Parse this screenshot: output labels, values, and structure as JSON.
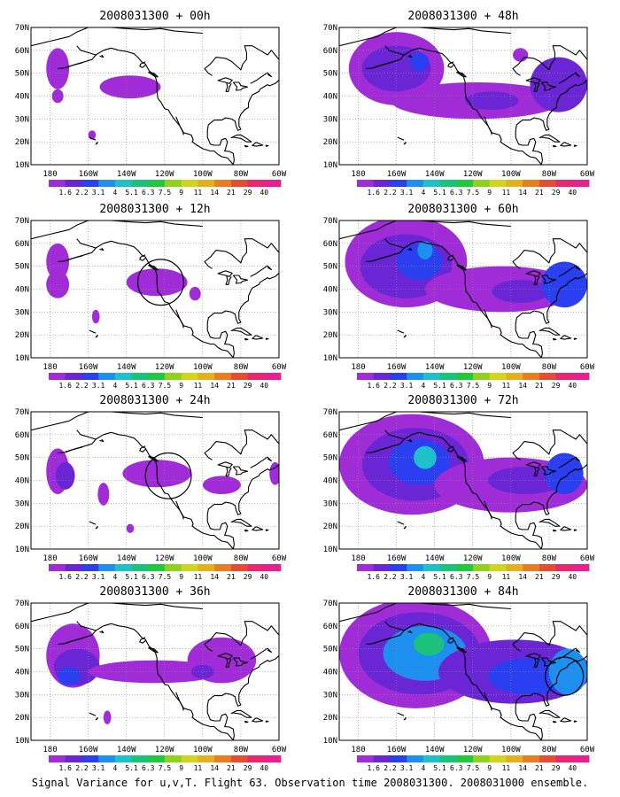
{
  "caption": "Signal Variance for u,v,T. Flight 63. Observation time 2008031300. 2008031000 ensemble.",
  "lat_labels": [
    "70N",
    "60N",
    "50N",
    "40N",
    "30N",
    "20N",
    "10N"
  ],
  "lon_labels": [
    "180",
    "160W",
    "140W",
    "120W",
    "100W",
    "80W",
    "60W"
  ],
  "colorbar": {
    "labels": [
      "1.6",
      "2.2",
      "3.1",
      "4",
      "5.1",
      "6.3",
      "7.5",
      "9",
      "11",
      "14",
      "21",
      "29",
      "40"
    ],
    "colors": [
      "#a02cd8",
      "#6a25d4",
      "#2a3ff0",
      "#1d8ff0",
      "#1dc1c9",
      "#19c47a",
      "#1fc83c",
      "#8ed21b",
      "#d0d61d",
      "#e6b01c",
      "#ea7d1f",
      "#e94a32",
      "#e9266e",
      "#ea1e8f"
    ]
  },
  "panels": [
    {
      "title": "2008031300 + 00h",
      "blobs": [
        {
          "lon": -176,
          "lat": 52,
          "rx": 6,
          "ry": 9,
          "level": 0
        },
        {
          "lon": -176,
          "lat": 40,
          "rx": 3,
          "ry": 3,
          "level": 0
        },
        {
          "lon": -138,
          "lat": 44,
          "rx": 16,
          "ry": 5,
          "level": 0
        },
        {
          "lon": -158,
          "lat": 23,
          "rx": 2,
          "ry": 2,
          "level": 0
        }
      ],
      "circle": null
    },
    {
      "title": "2008031300 + 12h",
      "blobs": [
        {
          "lon": -176,
          "lat": 52,
          "rx": 6,
          "ry": 8,
          "level": 0
        },
        {
          "lon": -176,
          "lat": 42,
          "rx": 6,
          "ry": 6,
          "level": 0
        },
        {
          "lon": -124,
          "lat": 43,
          "rx": 16,
          "ry": 6,
          "level": 0
        },
        {
          "lon": -104,
          "lat": 38,
          "rx": 3,
          "ry": 3,
          "level": 0
        },
        {
          "lon": -156,
          "lat": 28,
          "rx": 2,
          "ry": 3,
          "level": 0
        }
      ],
      "circle": {
        "lon": -122,
        "lat": 43,
        "r": 12
      }
    },
    {
      "title": "2008031300 + 24h",
      "blobs": [
        {
          "lon": -176,
          "lat": 44,
          "rx": 6,
          "ry": 10,
          "level": 0
        },
        {
          "lon": -172,
          "lat": 42,
          "rx": 5,
          "ry": 6,
          "level": 1
        },
        {
          "lon": -124,
          "lat": 43,
          "rx": 18,
          "ry": 6,
          "level": 0
        },
        {
          "lon": -90,
          "lat": 38,
          "rx": 10,
          "ry": 4,
          "level": 0
        },
        {
          "lon": -62,
          "lat": 43,
          "rx": 3,
          "ry": 5,
          "level": 0
        },
        {
          "lon": -152,
          "lat": 34,
          "rx": 3,
          "ry": 5,
          "level": 0
        },
        {
          "lon": -138,
          "lat": 19,
          "rx": 2,
          "ry": 2,
          "level": 0
        }
      ],
      "circle": {
        "lon": -118,
        "lat": 42,
        "r": 12
      }
    },
    {
      "title": "2008031300 + 36h",
      "blobs": [
        {
          "lon": -168,
          "lat": 47,
          "rx": 14,
          "ry": 14,
          "level": 0
        },
        {
          "lon": -166,
          "lat": 42,
          "rx": 12,
          "ry": 8,
          "level": 1
        },
        {
          "lon": -170,
          "lat": 38,
          "rx": 6,
          "ry": 4,
          "level": 2
        },
        {
          "lon": -125,
          "lat": 40,
          "rx": 35,
          "ry": 5,
          "level": 0
        },
        {
          "lon": -90,
          "lat": 45,
          "rx": 18,
          "ry": 10,
          "level": 0
        },
        {
          "lon": -100,
          "lat": 40,
          "rx": 6,
          "ry": 3,
          "level": 1
        },
        {
          "lon": -150,
          "lat": 20,
          "rx": 2,
          "ry": 3,
          "level": 0
        }
      ],
      "circle": null
    },
    {
      "title": "2008031300 + 48h",
      "blobs": [
        {
          "lon": -160,
          "lat": 52,
          "rx": 25,
          "ry": 16,
          "level": 0
        },
        {
          "lon": -160,
          "lat": 52,
          "rx": 18,
          "ry": 10,
          "level": 1
        },
        {
          "lon": -148,
          "lat": 55,
          "rx": 5,
          "ry": 4,
          "level": 2
        },
        {
          "lon": -118,
          "lat": 38,
          "rx": 45,
          "ry": 8,
          "level": 0
        },
        {
          "lon": -110,
          "lat": 38,
          "rx": 14,
          "ry": 4,
          "level": 1
        },
        {
          "lon": -95,
          "lat": 58,
          "rx": 4,
          "ry": 3,
          "level": 0
        },
        {
          "lon": -75,
          "lat": 45,
          "rx": 15,
          "ry": 12,
          "level": 1
        }
      ],
      "circle": null
    },
    {
      "title": "2008031300 + 60h",
      "blobs": [
        {
          "lon": -155,
          "lat": 52,
          "rx": 32,
          "ry": 20,
          "level": 0
        },
        {
          "lon": -155,
          "lat": 50,
          "rx": 24,
          "ry": 14,
          "level": 1
        },
        {
          "lon": -148,
          "lat": 52,
          "rx": 12,
          "ry": 8,
          "level": 2
        },
        {
          "lon": -145,
          "lat": 57,
          "rx": 4,
          "ry": 4,
          "level": 3
        },
        {
          "lon": -105,
          "lat": 40,
          "rx": 40,
          "ry": 10,
          "level": 0
        },
        {
          "lon": -95,
          "lat": 39,
          "rx": 15,
          "ry": 5,
          "level": 1
        },
        {
          "lon": -72,
          "lat": 42,
          "rx": 12,
          "ry": 10,
          "level": 2
        }
      ],
      "circle": null
    },
    {
      "title": "2008031300 + 72h",
      "blobs": [
        {
          "lon": -152,
          "lat": 47,
          "rx": 38,
          "ry": 22,
          "level": 0
        },
        {
          "lon": -150,
          "lat": 47,
          "rx": 28,
          "ry": 16,
          "level": 1
        },
        {
          "lon": -148,
          "lat": 48,
          "rx": 16,
          "ry": 10,
          "level": 2
        },
        {
          "lon": -145,
          "lat": 50,
          "rx": 6,
          "ry": 5,
          "level": 4
        },
        {
          "lon": -100,
          "lat": 38,
          "rx": 40,
          "ry": 12,
          "level": 0
        },
        {
          "lon": -92,
          "lat": 40,
          "rx": 20,
          "ry": 6,
          "level": 1
        },
        {
          "lon": -72,
          "lat": 43,
          "rx": 10,
          "ry": 9,
          "level": 2
        }
      ],
      "circle": null
    },
    {
      "title": "2008031300 + 84h",
      "blobs": [
        {
          "lon": -150,
          "lat": 48,
          "rx": 40,
          "ry": 24,
          "level": 0
        },
        {
          "lon": -148,
          "lat": 48,
          "rx": 32,
          "ry": 18,
          "level": 1
        },
        {
          "lon": -145,
          "lat": 48,
          "rx": 22,
          "ry": 12,
          "level": 3
        },
        {
          "lon": -143,
          "lat": 52,
          "rx": 8,
          "ry": 5,
          "level": 5
        },
        {
          "lon": -98,
          "lat": 40,
          "rx": 40,
          "ry": 14,
          "level": 1
        },
        {
          "lon": -90,
          "lat": 38,
          "rx": 22,
          "ry": 8,
          "level": 2
        },
        {
          "lon": -70,
          "lat": 40,
          "rx": 10,
          "ry": 10,
          "level": 3
        }
      ],
      "circle": {
        "lon": -72,
        "lat": 38,
        "r": 10
      }
    }
  ]
}
